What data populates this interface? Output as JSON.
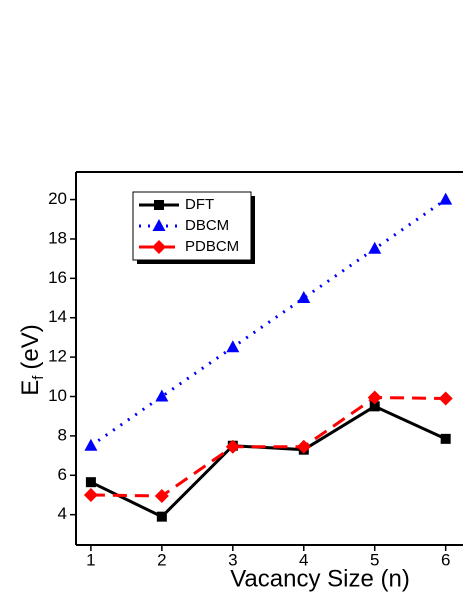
{
  "chart_data": {
    "type": "line",
    "xlabel": "Vacancy Size (n)",
    "ylabel": "E",
    "ylabel_subscript": "f",
    "ylabel_unit": "(eV)",
    "x": [
      1,
      2,
      3,
      4,
      5,
      6
    ],
    "series": [
      {
        "name": "DFT",
        "color": "#000000",
        "dash": "solid",
        "marker": "square",
        "values": [
          5.65,
          3.9,
          7.5,
          7.3,
          9.5,
          7.85
        ]
      },
      {
        "name": "DBCM",
        "color": "#0000ff",
        "dash": "dotted",
        "marker": "triangle",
        "values": [
          7.5,
          10,
          12.5,
          15,
          17.5,
          20
        ]
      },
      {
        "name": "PDBCM",
        "color": "#ff0000",
        "dash": "dashed",
        "marker": "diamond",
        "values": [
          5,
          4.95,
          7.45,
          7.45,
          9.95,
          9.9
        ]
      }
    ],
    "xlim": [
      0.79,
      6.23
    ],
    "xticks": [
      1,
      2,
      3,
      4,
      5,
      6
    ],
    "ylim": [
      2.46,
      21.4
    ],
    "yticks": [
      4,
      6,
      8,
      10,
      12,
      14,
      16,
      18,
      20
    ],
    "grid": false,
    "legend": "upper left"
  }
}
